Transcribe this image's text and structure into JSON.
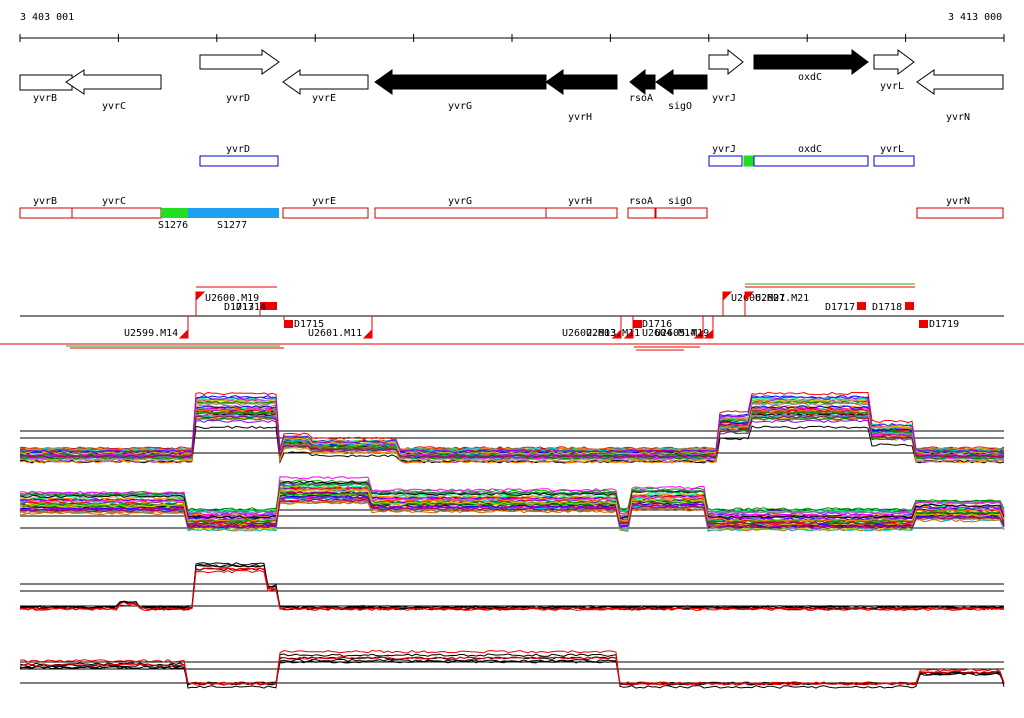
{
  "ruler": {
    "start": "3 403 001",
    "end": "3 413 000"
  },
  "genes": [
    {
      "label": "yvrB",
      "strand": "-",
      "fill": "white"
    },
    {
      "label": "yvrC",
      "strand": "-",
      "fill": "white"
    },
    {
      "label": "yvrD",
      "strand": "+",
      "fill": "white"
    },
    {
      "label": "yvrE",
      "strand": "-",
      "fill": "white"
    },
    {
      "label": "yvrG",
      "strand": "-",
      "fill": "black"
    },
    {
      "label": "yvrH",
      "strand": "-",
      "fill": "black"
    },
    {
      "label": "rsoA",
      "strand": "-",
      "fill": "black"
    },
    {
      "label": "sigO",
      "strand": "-",
      "fill": "black"
    },
    {
      "label": "yvrJ",
      "strand": "+",
      "fill": "white"
    },
    {
      "label": "oxdC",
      "strand": "+",
      "fill": "black"
    },
    {
      "label": "yvrL",
      "strand": "+",
      "fill": "white"
    },
    {
      "label": "yvrN",
      "strand": "-",
      "fill": "white"
    }
  ],
  "forward_tus": [
    {
      "label": "yvrD"
    },
    {
      "label": "yvrJ"
    },
    {
      "label": "oxdC"
    },
    {
      "label": "yvrL"
    }
  ],
  "reverse_tus": [
    {
      "label": "yvrB"
    },
    {
      "label": "yvrC"
    },
    {
      "label": "yvrE"
    },
    {
      "label": "yvrG"
    },
    {
      "label": "yvrH"
    },
    {
      "label": "rsoA"
    },
    {
      "label": "sigO"
    },
    {
      "label": "yvrN"
    }
  ],
  "segments": [
    {
      "label": "S1276",
      "color": "#22dd22"
    },
    {
      "label": "S1277",
      "color": "#1ea0f0"
    }
  ],
  "features": [
    {
      "label": "U2600.M19",
      "strand": "+"
    },
    {
      "label": "D1713",
      "strand": "+"
    },
    {
      "label": "D1714",
      "strand": "+"
    },
    {
      "label": "U2606.M21",
      "strand": "+"
    },
    {
      "label": "U2607.M21",
      "strand": "+"
    },
    {
      "label": "D1717",
      "strand": "+"
    },
    {
      "label": "D1718",
      "strand": "+"
    },
    {
      "label": "D1715",
      "strand": "-"
    },
    {
      "label": "D1719",
      "strand": "-"
    },
    {
      "label": "U2599.M14",
      "strand": "-"
    },
    {
      "label": "U2601.M11",
      "strand": "-"
    },
    {
      "label": "U2602.M13",
      "strand": "-"
    },
    {
      "label": "U2603.M11",
      "strand": "-"
    },
    {
      "label": "D1716",
      "strand": "-"
    },
    {
      "label": "U2604.M14",
      "strand": "-"
    },
    {
      "label": "U2605.M19",
      "strand": "-"
    }
  ],
  "colors": {
    "tu_forward": "#0000cc",
    "tu_reverse": "#cc0000",
    "feature": "#ee0000",
    "gene_fill": "#000000"
  },
  "expression_panels": [
    {
      "name": "forward-strand-all-conditions",
      "style": "multicolor"
    },
    {
      "name": "reverse-strand-all-conditions",
      "style": "multicolor"
    },
    {
      "name": "forward-strand-selected",
      "style": "black-red"
    },
    {
      "name": "reverse-strand-selected",
      "style": "black-red"
    }
  ]
}
